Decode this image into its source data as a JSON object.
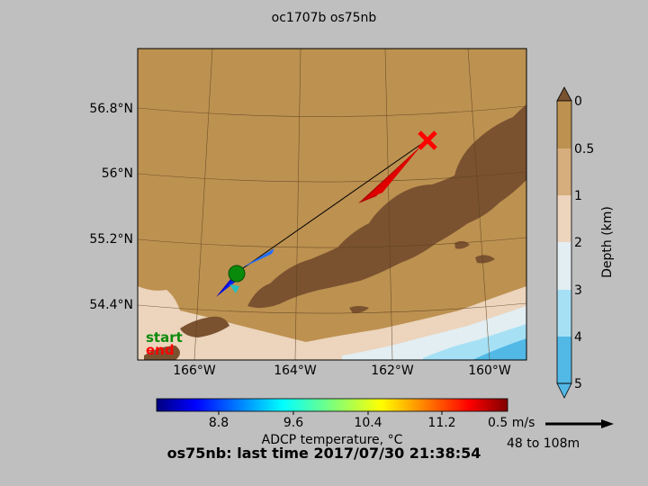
{
  "title": "oc1707b os75nb",
  "map": {
    "lat_labels": [
      "56.8°N",
      "56°N",
      "55.2°N",
      "54.4°N"
    ],
    "lon_labels": [
      "166°W",
      "164°W",
      "162°W",
      "160°W"
    ],
    "legend": {
      "start": "start",
      "end": "end"
    },
    "colors": {
      "land": "#7a5230",
      "shallow": "#bd9150",
      "start_marker": "#0a8a0a",
      "end_marker": "#ff0000"
    }
  },
  "depth_colorbar": {
    "label": "Depth (km)",
    "ticks": [
      "0",
      "0.5",
      "1",
      "2",
      "3",
      "4",
      "5"
    ],
    "colors": [
      "#bd9150",
      "#d6ad7c",
      "#ecd4bd",
      "#e2eef2",
      "#a6e0f5",
      "#52b8e6"
    ]
  },
  "temp_colorbar": {
    "label": "ADCP temperature, °C",
    "ticks": [
      "8.8",
      "9.6",
      "10.4",
      "11.2"
    ]
  },
  "scale": {
    "speed_label": "0.5 m/s",
    "depth_range": "48 to 108m"
  },
  "footer": "os75nb: last time 2017/07/30 21:38:54"
}
